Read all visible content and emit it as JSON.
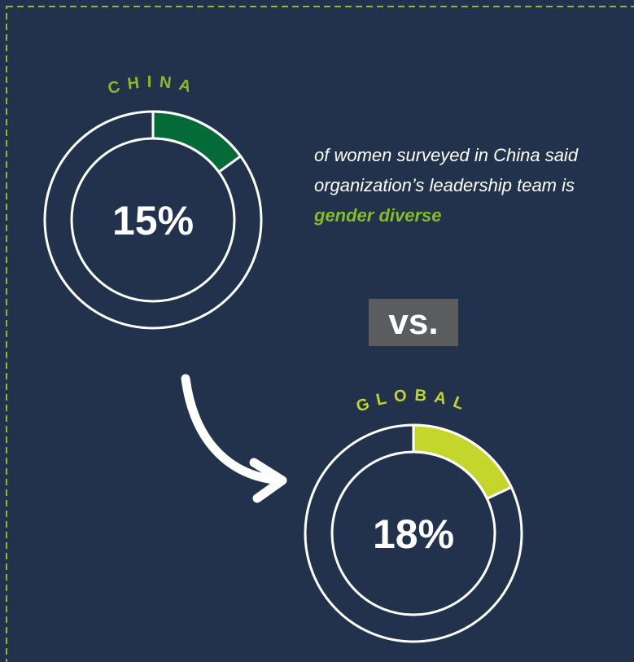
{
  "chart_data": [
    {
      "type": "donut",
      "title": "CHINA",
      "values": [
        15
      ],
      "value_labels": [
        "15%"
      ],
      "color": "#046a38",
      "label_color": "#86bc25"
    },
    {
      "type": "donut",
      "title": "GLOBAL",
      "values": [
        18
      ],
      "value_labels": [
        "18%"
      ],
      "color": "#c4d52b",
      "label_color": "#c4d52b"
    }
  ],
  "caption": {
    "text": "of women surveyed in China said organization’s leadership team is",
    "highlight": "gender diverse"
  },
  "versus": "vs."
}
